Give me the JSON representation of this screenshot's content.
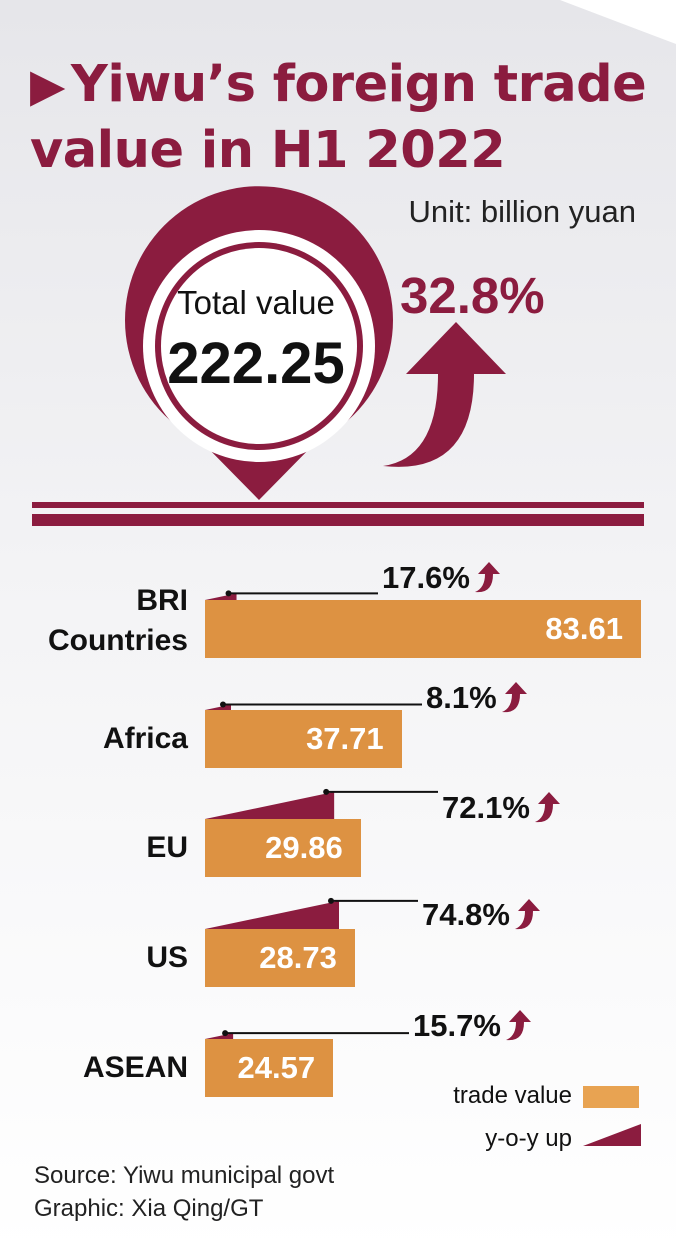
{
  "title": "Yiwu’s foreign trade value in H1 2022",
  "unit": "Unit: billion yuan",
  "total": {
    "label": "Total value",
    "value": "222.25",
    "growth": "32.8%"
  },
  "colors": {
    "accent": "#8b1c3f",
    "bar": "#dd9242",
    "swatch": "#e8a352"
  },
  "chart_data": {
    "type": "bar",
    "orientation": "horizontal",
    "categories": [
      "BRI Countries",
      "Africa",
      "EU",
      "US",
      "ASEAN"
    ],
    "series": [
      {
        "name": "trade value",
        "values": [
          83.61,
          37.71,
          29.86,
          28.73,
          24.57
        ]
      },
      {
        "name": "y-o-y up",
        "values": [
          17.6,
          8.1,
          72.1,
          74.8,
          15.7
        ]
      }
    ],
    "value_labels": [
      "83.61",
      "37.71",
      "29.86",
      "28.73",
      "24.57"
    ],
    "growth_labels": [
      "17.6%",
      "8.1%",
      "72.1%",
      "74.8%",
      "15.7%"
    ]
  },
  "legend": {
    "trade_value": "trade value",
    "yoy_up": "y-o-y up"
  },
  "footer": {
    "source": "Source: Yiwu municipal govt",
    "graphic": "Graphic: Xia Qing/GT"
  }
}
